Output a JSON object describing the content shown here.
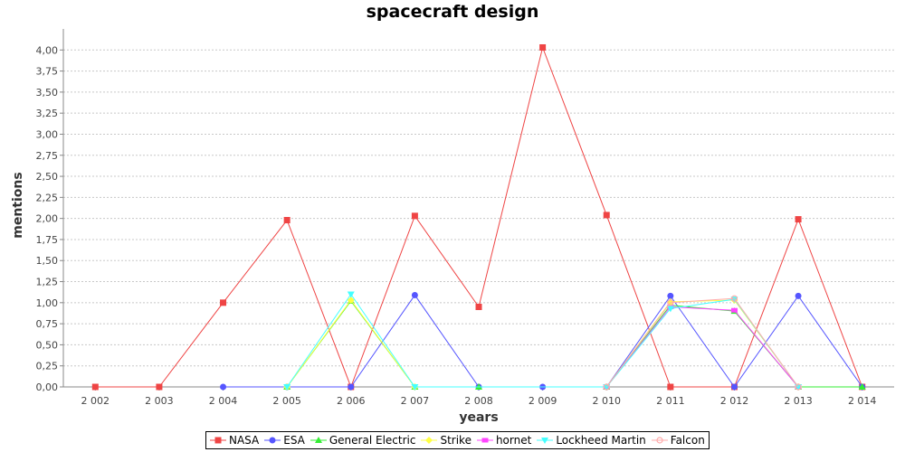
{
  "chart_data": {
    "type": "line",
    "title": "spacecraft design",
    "xlabel": "years",
    "ylabel": "mentions",
    "categories": [
      "2 002",
      "2 003",
      "2 004",
      "2 005",
      "2 006",
      "2 007",
      "2 008",
      "2 009",
      "2 010",
      "2 011",
      "2 012",
      "2 013",
      "2 014"
    ],
    "ylim": [
      0,
      4.25
    ],
    "yticks": [
      "0,00",
      "0,25",
      "0,50",
      "0,75",
      "1,00",
      "1,25",
      "1,50",
      "1,75",
      "2,00",
      "2,25",
      "2,50",
      "2,75",
      "3,00",
      "3,25",
      "3,50",
      "3,75",
      "4,00"
    ],
    "grid": true,
    "legend_position": "bottom",
    "series": [
      {
        "name": "NASA",
        "color": "#ef4444",
        "marker": "square",
        "points": [
          [
            "2 002",
            0
          ],
          [
            "2 003",
            0
          ],
          [
            "2 004",
            1.0
          ],
          [
            "2 005",
            1.98
          ],
          [
            "2 006",
            0
          ],
          [
            "2 007",
            2.03
          ],
          [
            "2 008",
            0.95
          ],
          [
            "2 009",
            4.03
          ],
          [
            "2 010",
            2.04
          ],
          [
            "2 011",
            0
          ],
          [
            "2 012",
            0
          ],
          [
            "2 013",
            1.99
          ],
          [
            "2 014",
            0
          ]
        ]
      },
      {
        "name": "ESA",
        "color": "#5555ff",
        "marker": "circle",
        "points": [
          [
            "2 004",
            0
          ],
          [
            "2 005",
            0
          ],
          [
            "2 006",
            0
          ],
          [
            "2 007",
            1.09
          ],
          [
            "2 008",
            0
          ],
          [
            "2 009",
            0
          ],
          [
            "2 010",
            0
          ],
          [
            "2 011",
            1.08
          ],
          [
            "2 012",
            0
          ],
          [
            "2 013",
            1.08
          ],
          [
            "2 014",
            0
          ]
        ]
      },
      {
        "name": "General Electric",
        "color": "#33ee33",
        "marker": "triangle-up",
        "points": [
          [
            "2 005",
            0
          ],
          [
            "2 006",
            1.02
          ],
          [
            "2 007",
            0
          ],
          [
            "2 008",
            0
          ],
          [
            "2 010",
            0
          ],
          [
            "2 011",
            0.97
          ],
          [
            "2 012",
            0.9
          ],
          [
            "2 013",
            0
          ],
          [
            "2 014",
            0
          ]
        ]
      },
      {
        "name": "Strike",
        "color": "#ffff44",
        "marker": "diamond",
        "points": [
          [
            "2 005",
            0
          ],
          [
            "2 006",
            1.03
          ],
          [
            "2 007",
            0
          ],
          [
            "2 010",
            0
          ],
          [
            "2 011",
            1.01
          ],
          [
            "2 012",
            1.03
          ],
          [
            "2 013",
            0
          ]
        ]
      },
      {
        "name": "hornet",
        "color": "#ff44ff",
        "marker": "rect",
        "points": [
          [
            "2 010",
            0
          ],
          [
            "2 011",
            0.95
          ],
          [
            "2 012",
            0.91
          ],
          [
            "2 013",
            0
          ]
        ]
      },
      {
        "name": "Lockheed Martin",
        "color": "#44ffff",
        "marker": "triangle-down",
        "points": [
          [
            "2 005",
            0
          ],
          [
            "2 006",
            1.1
          ],
          [
            "2 007",
            0
          ],
          [
            "2 010",
            0
          ],
          [
            "2 011",
            0.93
          ],
          [
            "2 012",
            1.04
          ],
          [
            "2 013",
            0
          ]
        ]
      },
      {
        "name": "Falcon",
        "color": "#ffaaaa",
        "marker": "circle-open",
        "points": [
          [
            "2 010",
            0
          ],
          [
            "2 011",
            1.0
          ],
          [
            "2 012",
            1.05
          ],
          [
            "2 013",
            0
          ]
        ]
      }
    ]
  }
}
